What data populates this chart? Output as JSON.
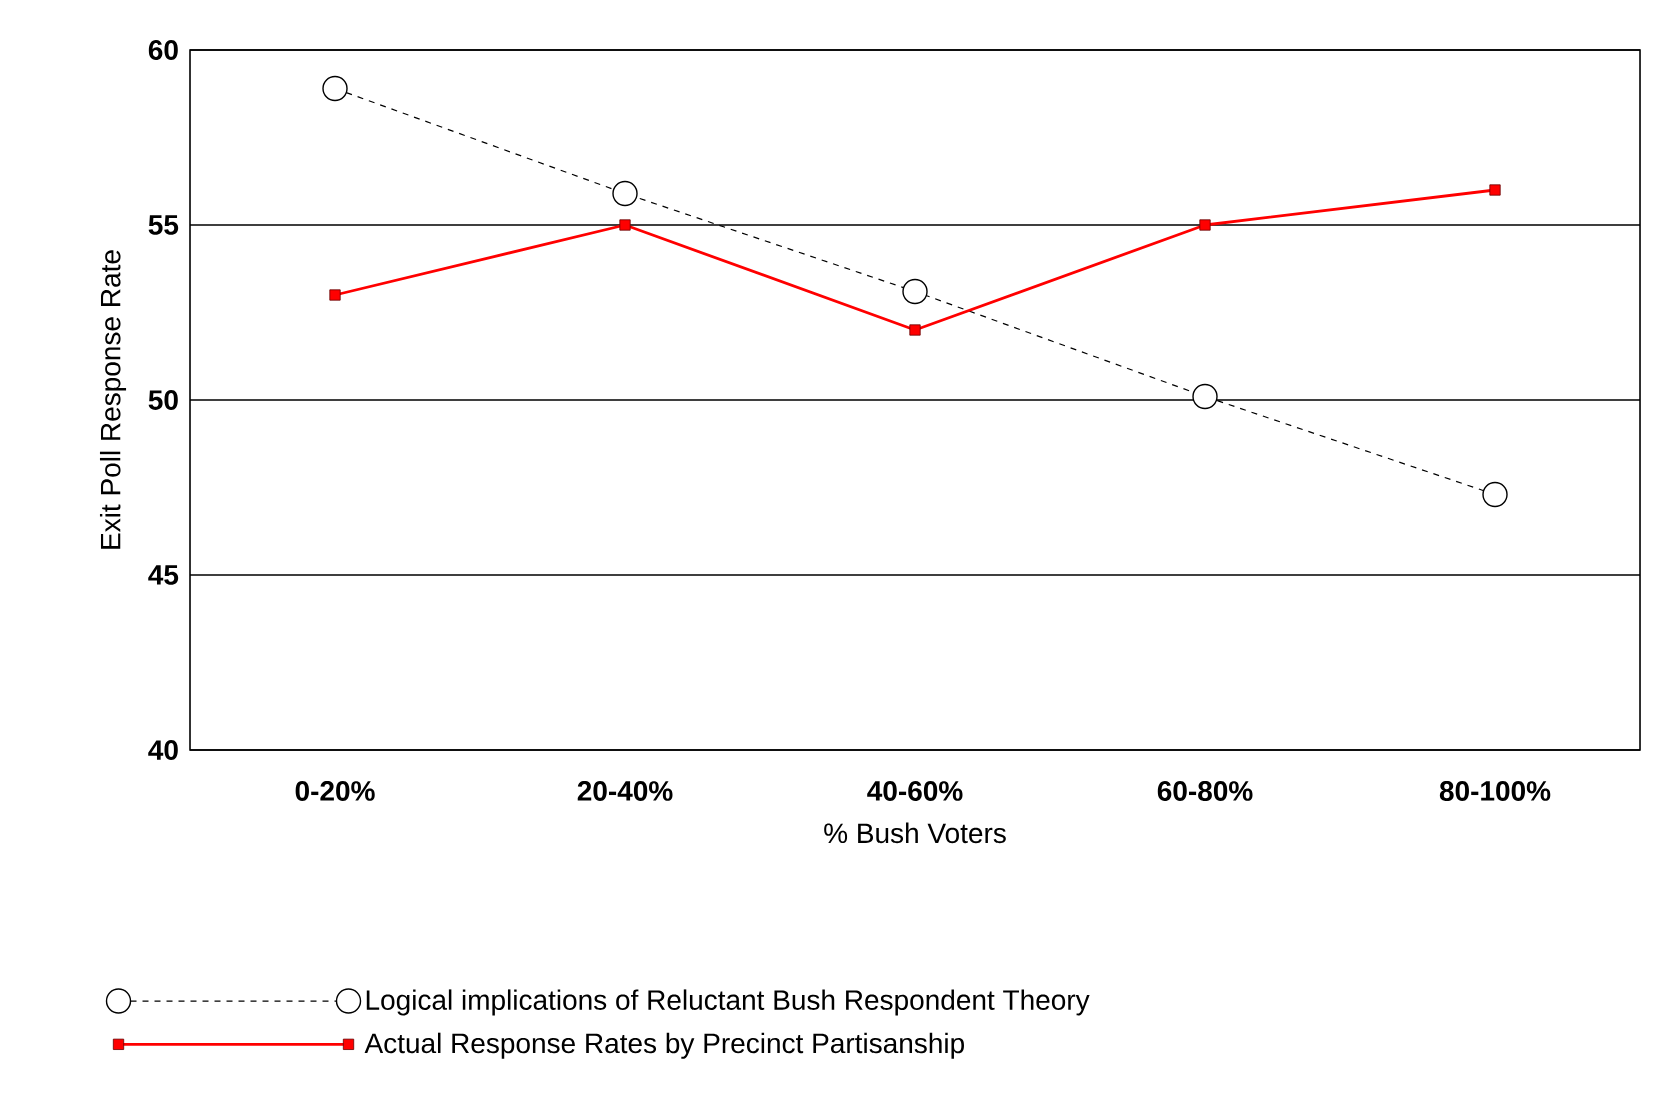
{
  "chart_data": {
    "type": "line",
    "xlabel": "% Bush Voters",
    "ylabel": "Exit Poll Response Rate",
    "categories": [
      "0-20%",
      "20-40%",
      "40-60%",
      "60-80%",
      "80-100%"
    ],
    "ylim": [
      40,
      60
    ],
    "yticks": [
      40,
      45,
      50,
      55,
      60
    ],
    "grid": "y",
    "legend": "bottom",
    "series": [
      {
        "name": "Logical implications of Reluctant Bush Respondent Theory",
        "color": "#000000",
        "values": [
          58.9,
          55.9,
          53.1,
          50.1,
          47.3
        ],
        "marker": "circle",
        "line_style": "dashed"
      },
      {
        "name": "Actual Response Rates by Precinct Partisanship",
        "color": "#ff0000",
        "values": [
          53,
          55,
          52,
          55,
          56
        ],
        "marker": "square",
        "line_style": "solid"
      }
    ]
  }
}
